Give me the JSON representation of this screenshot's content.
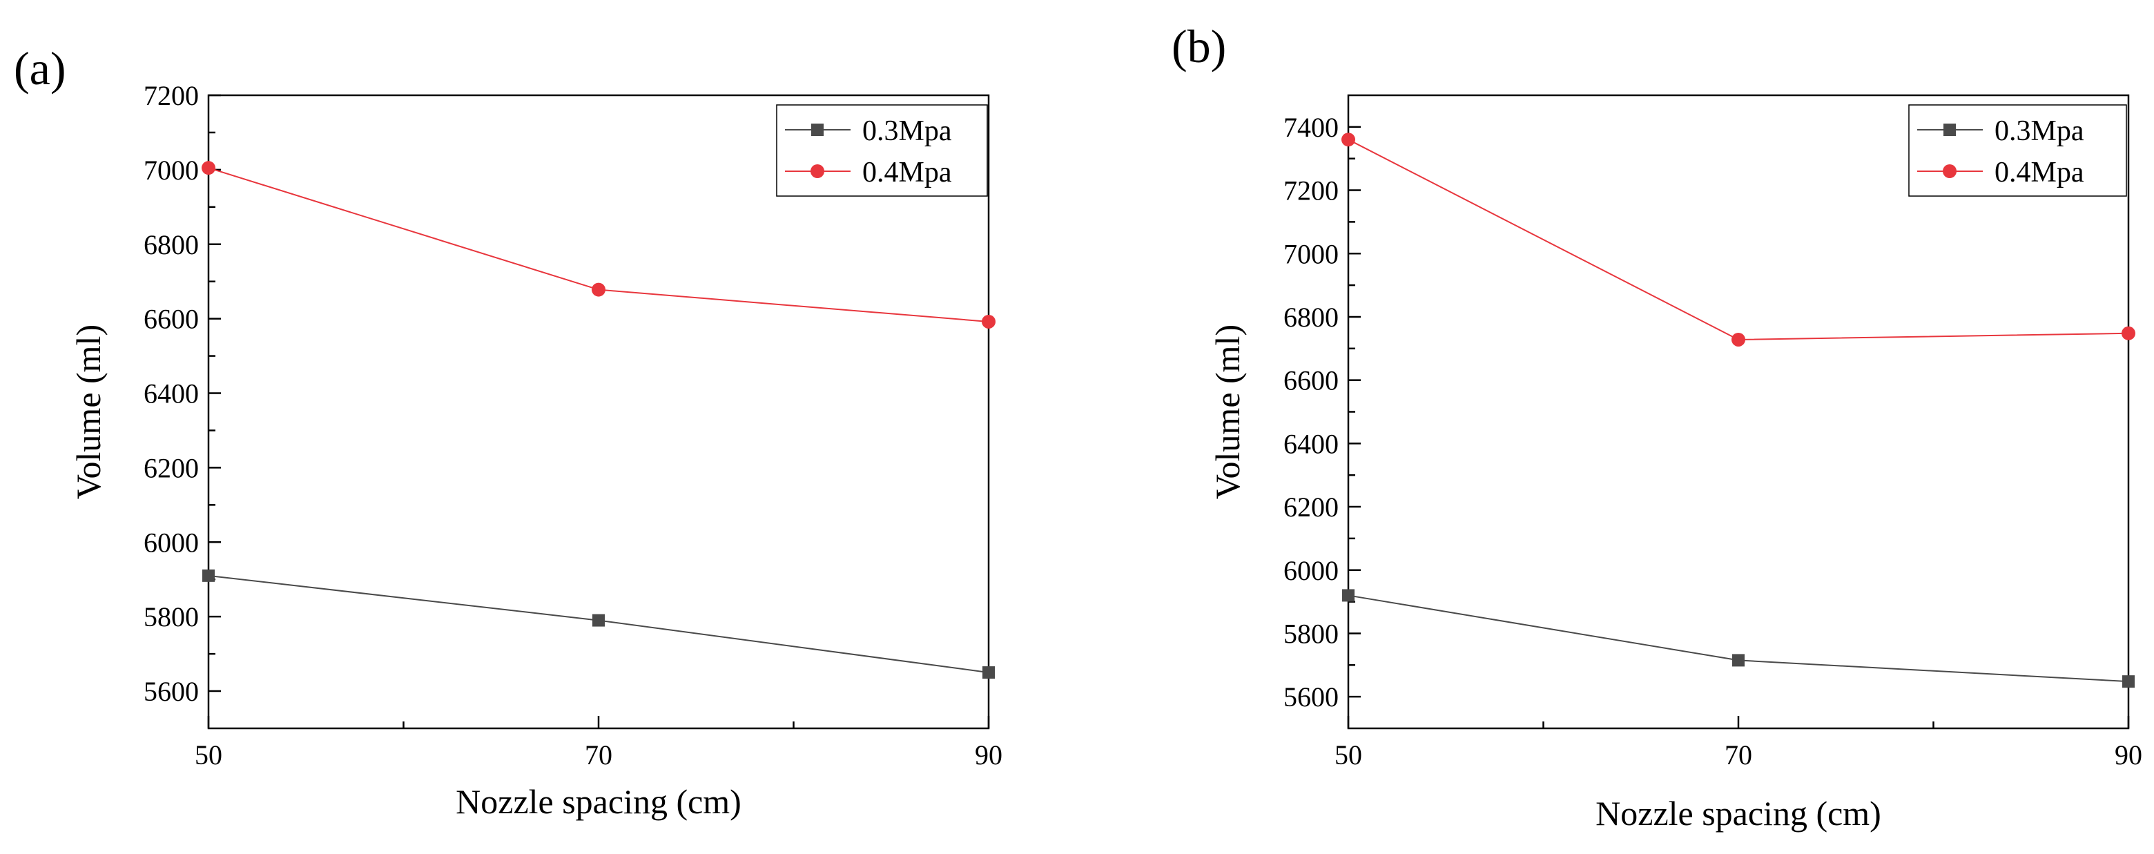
{
  "figure": {
    "panels": [
      "(a)",
      "(b)"
    ]
  },
  "chart_data": [
    {
      "type": "line",
      "panel": "(a)",
      "xlabel": "Nozzle spacing (cm)",
      "ylabel": "Volume (ml)",
      "x": [
        50,
        70,
        90
      ],
      "xlim": [
        50,
        90
      ],
      "ylim": [
        5500,
        7200
      ],
      "xticks": [
        50,
        70,
        90
      ],
      "yticks": [
        5600,
        5800,
        6000,
        6200,
        6400,
        6600,
        6800,
        7000,
        7200
      ],
      "legend": "top-right",
      "series": [
        {
          "name": "0.3Mpa",
          "color": "#4a4a4a",
          "marker": "square",
          "values": [
            5910,
            5790,
            5650
          ]
        },
        {
          "name": "0.4Mpa",
          "color": "#e8363d",
          "marker": "circle",
          "values": [
            7005,
            6678,
            6592
          ]
        }
      ]
    },
    {
      "type": "line",
      "panel": "(b)",
      "xlabel": "Nozzle spacing (cm)",
      "ylabel": "Volume (ml)",
      "x": [
        50,
        70,
        90
      ],
      "xlim": [
        50,
        90
      ],
      "ylim": [
        5500,
        7500
      ],
      "xticks": [
        50,
        70,
        90
      ],
      "yticks": [
        5600,
        5800,
        6000,
        6200,
        6400,
        6600,
        6800,
        7000,
        7200,
        7400
      ],
      "legend": "top-right",
      "series": [
        {
          "name": "0.3Mpa",
          "color": "#4a4a4a",
          "marker": "square",
          "values": [
            5920,
            5715,
            5648
          ]
        },
        {
          "name": "0.4Mpa",
          "color": "#e8363d",
          "marker": "circle",
          "values": [
            7360,
            6728,
            6748
          ]
        }
      ]
    }
  ]
}
